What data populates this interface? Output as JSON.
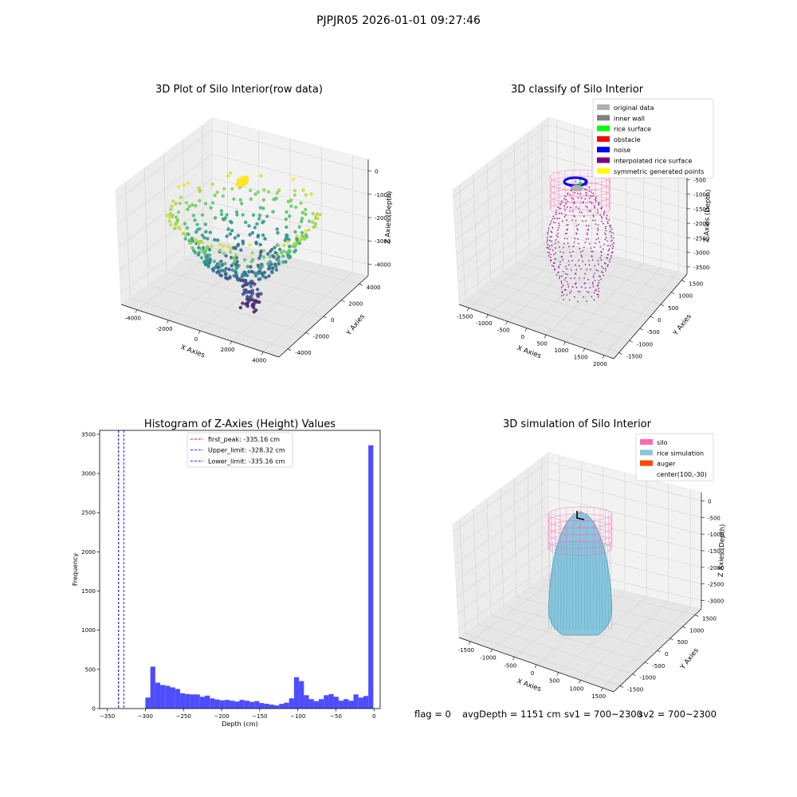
{
  "figure": {
    "suptitle": "PJPJR05 2026-01-01 09:27:46",
    "status": {
      "flag": "flag = 0",
      "avg_depth": "avgDepth = 1151 cm",
      "sv1": "sv1 = 700~2300",
      "sv2": "sv2 = 700~2300"
    }
  },
  "colors": {
    "hist_bar": "#4d4dff",
    "first_peak_line": "#ff0000",
    "limit_lines": "#0000ff",
    "mesh_pink": "#ff69b4",
    "rice_simulation": "#87c6dd",
    "auger": "#ff4500",
    "classify_point": "#8b008b",
    "pane_fill": "#f2f2f2"
  },
  "chart_data": [
    {
      "type": "scatter3d",
      "title": "3D Plot of Silo Interior(row data)",
      "xlabel": "X Axies",
      "ylabel": "Y Axies",
      "zlabel": "Z Axies (Depth)",
      "xlim": [
        -4500,
        4500
      ],
      "ylim": [
        -4500,
        4500
      ],
      "zlim": [
        -4500,
        0
      ],
      "x_ticks": [
        "-4000",
        "-2000",
        "0",
        "2000",
        "4000"
      ],
      "y_ticks": [
        "-4000",
        "-2000",
        "0",
        "2000",
        "4000"
      ],
      "z_ticks": [
        "0",
        "-1000",
        "-2000",
        "-3000",
        "-4000"
      ],
      "colormap": "viridis",
      "surface": {
        "rim_radius": 3800,
        "bowl_depth": 2700,
        "rim_depth": 1300
      },
      "grid": true
    },
    {
      "type": "scatter3d",
      "title": "3D classify of Silo Interior",
      "xlabel": "X Axies",
      "ylabel": "Y Axies",
      "zlabel": "Z Axies (Depth)",
      "x_ticks": [
        "-1500",
        "-1000",
        "-500",
        "0",
        "500",
        "1000",
        "1500",
        "2000"
      ],
      "y_ticks": [
        "-1500",
        "-1000",
        "-500",
        "0",
        "500",
        "1000",
        "1500"
      ],
      "z_ticks": [
        "0",
        "-500",
        "-1000",
        "-1500",
        "-2000",
        "-2500",
        "-3000",
        "-3500"
      ],
      "legend_position": "top-right",
      "legend": [
        {
          "label": "original data",
          "color": "#b0b0b0"
        },
        {
          "label": "inner wall",
          "color": "#808080"
        },
        {
          "label": "rice surface",
          "color": "#00ff00"
        },
        {
          "label": "obstacle",
          "color": "#ff0000"
        },
        {
          "label": "noise",
          "color": "#0000ff"
        },
        {
          "label": "interpolated rice surface",
          "color": "#800080"
        },
        {
          "label": "symmetric generated points",
          "color": "#ffff00"
        }
      ],
      "grid": true
    },
    {
      "type": "bar",
      "title": "Histogram of Z-Axies (Height) Values",
      "xlabel": "Depth (cm)",
      "ylabel": "Frequency",
      "xlim": [
        -360,
        8
      ],
      "ylim": [
        0,
        3550
      ],
      "x_ticks": [
        -350,
        -300,
        -250,
        -200,
        -150,
        -100,
        -50,
        0
      ],
      "y_ticks": [
        0,
        500,
        1000,
        1500,
        2000,
        2500,
        3000,
        3500
      ],
      "bin_width": 6.5,
      "bin_start": -300,
      "values": [
        140,
        535,
        330,
        300,
        290,
        270,
        250,
        195,
        185,
        180,
        180,
        150,
        165,
        130,
        115,
        105,
        110,
        100,
        90,
        110,
        100,
        85,
        95,
        70,
        60,
        50,
        40,
        60,
        75,
        130,
        400,
        350,
        170,
        120,
        95,
        120,
        170,
        185,
        150,
        100,
        120,
        100,
        180,
        140,
        160,
        3360
      ],
      "vlines": [
        {
          "label": "first_peak: -335.16 cm",
          "x": -335.16,
          "color": "#ff0000"
        },
        {
          "label": "Upper_limit: -328.32 cm",
          "x": -328.32,
          "color": "#0000ff"
        },
        {
          "label": "Lower_limit: -335.16 cm",
          "x": -335.16,
          "color": "#0000ff"
        }
      ],
      "legend_position": "top-center"
    },
    {
      "type": "surface3d",
      "title": "3D simulation of Silo Interior",
      "xlabel": "X Axies",
      "ylabel": "Y Axies",
      "zlabel": "Z Axies (Depth)",
      "x_ticks": [
        "-1500",
        "-1000",
        "-500",
        "0",
        "500",
        "1000",
        "1500"
      ],
      "y_ticks": [
        "-1500",
        "-1000",
        "-500",
        "0",
        "500",
        "1000",
        "1500"
      ],
      "z_ticks": [
        "0",
        "-500",
        "-1000",
        "-1500",
        "-2000",
        "-2500",
        "-3000"
      ],
      "legend_position": "top-right",
      "legend": [
        {
          "label": "silo",
          "color": "#ff69b4"
        },
        {
          "label": "rice simulation",
          "color": "#87c6dd"
        },
        {
          "label": "auger",
          "color": "#ff4500"
        },
        {
          "label": "center(100,-30)",
          "color": ""
        }
      ],
      "grid": true
    }
  ]
}
